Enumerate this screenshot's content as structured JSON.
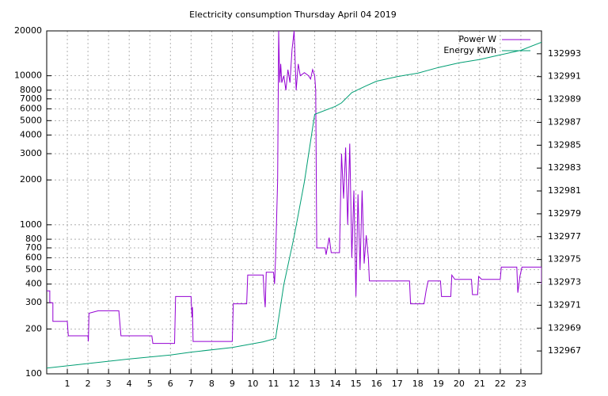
{
  "chart_data": {
    "type": "line",
    "title": "Electricity consumption Thursday April 04 2019",
    "xlim": [
      0,
      24
    ],
    "xticks": [
      1,
      2,
      3,
      4,
      5,
      6,
      7,
      8,
      9,
      10,
      11,
      12,
      13,
      14,
      15,
      16,
      17,
      18,
      19,
      20,
      21,
      22,
      23
    ],
    "ylim": [
      100,
      20000
    ],
    "log_y": true,
    "yticks": [
      100,
      200,
      300,
      400,
      500,
      600,
      700,
      800,
      1000,
      2000,
      3000,
      4000,
      5000,
      6000,
      7000,
      8000,
      10000,
      20000
    ],
    "y2lim": [
      132965,
      132995
    ],
    "y2ticks": [
      132967,
      132969,
      132971,
      132973,
      132975,
      132977,
      132979,
      132981,
      132983,
      132985,
      132987,
      132989,
      132991,
      132993
    ],
    "grid": true,
    "legend": "top-right",
    "series": [
      {
        "name": "Power W",
        "color": "#9400d3",
        "x": [
          0,
          0.15,
          0.15,
          0.3,
          0.3,
          1.0,
          1.05,
          2.0,
          2.02,
          2.05,
          2.5,
          3.5,
          3.6,
          5.1,
          5.15,
          6.2,
          6.25,
          7.0,
          7.05,
          7.07,
          7.1,
          9.0,
          9.05,
          9.7,
          9.75,
          10.5,
          10.55,
          10.6,
          10.65,
          10.7,
          11.0,
          11.05,
          11.1,
          11.2,
          11.25,
          11.3,
          11.35,
          11.4,
          11.5,
          11.6,
          11.7,
          11.8,
          11.9,
          12.0,
          12.1,
          12.2,
          12.3,
          12.5,
          12.7,
          12.8,
          12.9,
          13.0,
          13.05,
          13.1,
          13.5,
          13.55,
          13.7,
          13.8,
          14.2,
          14.3,
          14.4,
          14.5,
          14.6,
          14.7,
          14.8,
          14.9,
          15.0,
          15.1,
          15.2,
          15.3,
          15.4,
          15.5,
          15.6,
          15.65,
          17.6,
          17.65,
          18.3,
          18.4,
          18.5,
          19.1,
          19.15,
          19.6,
          19.65,
          19.8,
          20.6,
          20.65,
          20.9,
          20.95,
          21.1,
          22.0,
          22.05,
          22.8,
          22.85,
          22.95,
          23.05,
          24.0,
          24.0
        ],
        "values": [
          360,
          360,
          300,
          300,
          225,
          225,
          180,
          180,
          165,
          255,
          265,
          265,
          180,
          180,
          160,
          160,
          330,
          330,
          240,
          280,
          165,
          165,
          295,
          295,
          460,
          460,
          340,
          280,
          480,
          480,
          480,
          400,
          600,
          2000,
          20000,
          9000,
          12000,
          9000,
          10000,
          8000,
          11000,
          9000,
          15000,
          20000,
          8000,
          12000,
          10000,
          10500,
          10000,
          9500,
          11000,
          10000,
          8000,
          700,
          700,
          630,
          820,
          650,
          650,
          3000,
          1500,
          3300,
          1000,
          3500,
          600,
          1700,
          330,
          1600,
          500,
          1700,
          550,
          850,
          600,
          420,
          420,
          295,
          295,
          360,
          420,
          420,
          330,
          330,
          460,
          430,
          430,
          340,
          340,
          450,
          430,
          430,
          520,
          520,
          350,
          450,
          520,
          520,
          400
        ]
      },
      {
        "name": "Energy KWh",
        "color": "#009e73",
        "axis": "y2",
        "x": [
          0,
          2,
          4,
          6,
          7,
          9,
          10.5,
          11.1,
          11.5,
          12,
          12.5,
          13,
          14,
          14.3,
          14.8,
          15.5,
          16,
          17,
          18,
          19,
          20,
          21,
          22,
          23,
          24
        ],
        "values": [
          132965.5,
          132965.9,
          132966.3,
          132966.65,
          132966.9,
          132967.3,
          132967.8,
          132968.1,
          132972.8,
          132977.0,
          132981.8,
          132987.7,
          132988.4,
          132988.7,
          132989.6,
          132990.2,
          132990.6,
          132991.0,
          132991.3,
          132991.8,
          132992.2,
          132992.5,
          132992.9,
          132993.3,
          132994.0
        ]
      }
    ]
  }
}
